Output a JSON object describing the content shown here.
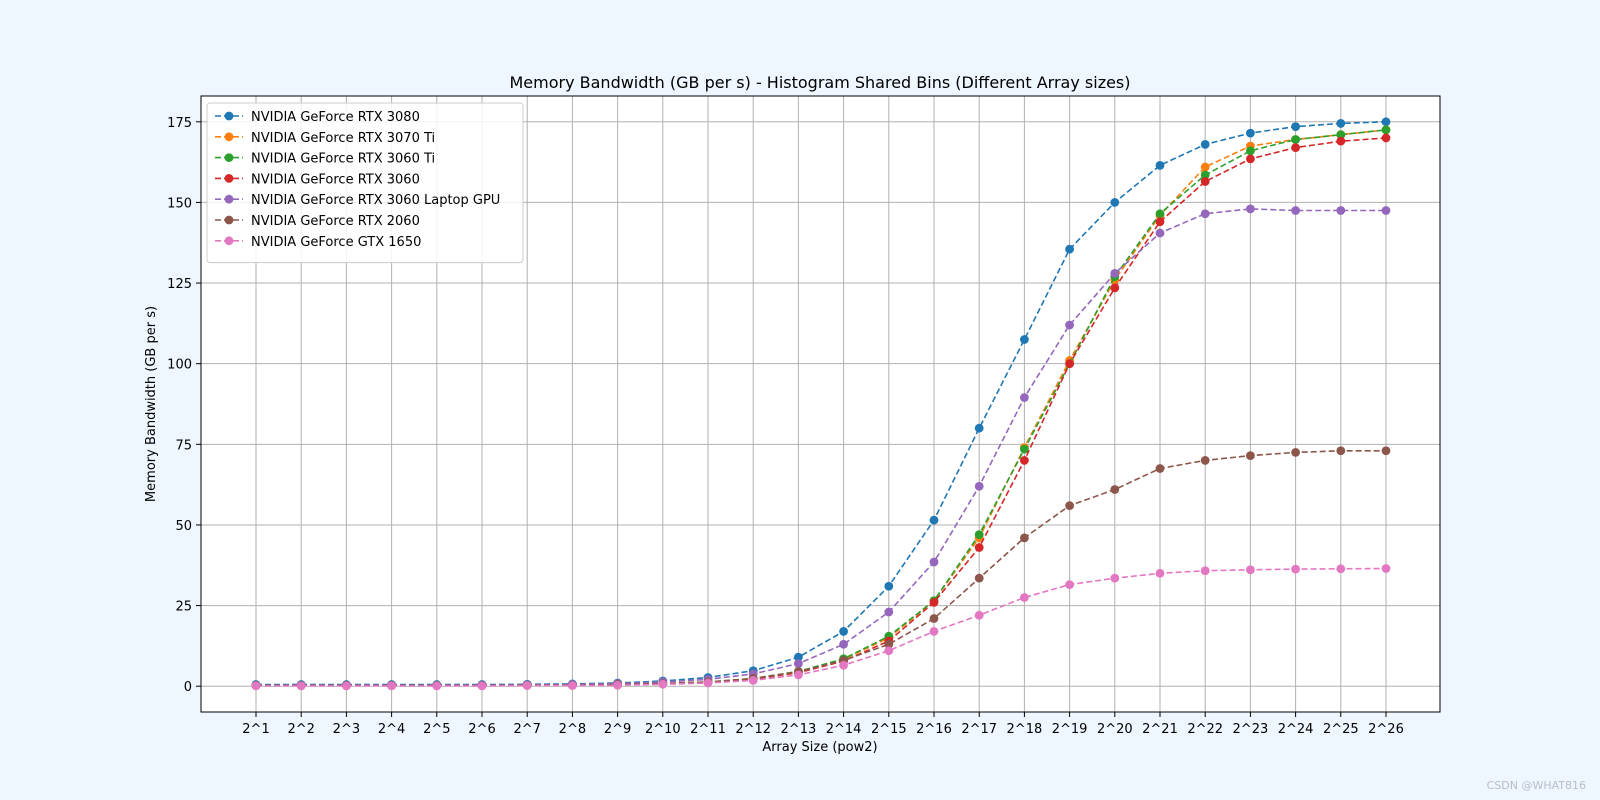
{
  "chart_data": {
    "type": "line",
    "title": "Memory Bandwidth (GB per s) - Histogram Shared Bins (Different Array sizes)",
    "xlabel": "Array Size (pow2)",
    "ylabel": "Memory Bandwidth (GB per s)",
    "ylim": [
      -8,
      183
    ],
    "yticks": [
      0,
      25,
      50,
      75,
      100,
      125,
      150,
      175
    ],
    "grid": true,
    "legend_position": "upper-left",
    "line_style": "dashed",
    "marker": "circle",
    "categories": [
      "2^1",
      "2^2",
      "2^3",
      "2^4",
      "2^5",
      "2^6",
      "2^7",
      "2^8",
      "2^9",
      "2^10",
      "2^11",
      "2^12",
      "2^13",
      "2^14",
      "2^15",
      "2^16",
      "2^17",
      "2^18",
      "2^19",
      "2^20",
      "2^21",
      "2^22",
      "2^23",
      "2^24",
      "2^25",
      "2^26"
    ],
    "series": [
      {
        "name": "NVIDIA GeForce RTX 3080",
        "color": "#1f77b4",
        "values": [
          0.5,
          0.5,
          0.5,
          0.5,
          0.5,
          0.5,
          0.6,
          0.7,
          1.0,
          1.6,
          2.7,
          4.8,
          9.0,
          17.0,
          31.0,
          51.5,
          80.0,
          107.5,
          135.5,
          150.0,
          161.5,
          168.0,
          171.5,
          173.5,
          174.5,
          175.0
        ]
      },
      {
        "name": "NVIDIA GeForce RTX 3070 Ti",
        "color": "#ff7f0e",
        "values": [
          0.2,
          0.2,
          0.2,
          0.2,
          0.2,
          0.2,
          0.3,
          0.3,
          0.5,
          0.8,
          1.3,
          2.4,
          4.5,
          8.3,
          15.0,
          26.5,
          46.0,
          74.0,
          101.0,
          126.0,
          146.0,
          161.0,
          167.5,
          169.5,
          171.0,
          172.5
        ]
      },
      {
        "name": "NVIDIA GeForce RTX 3060 Ti",
        "color": "#2ca02c",
        "values": [
          0.2,
          0.2,
          0.2,
          0.2,
          0.2,
          0.2,
          0.3,
          0.3,
          0.5,
          0.8,
          1.3,
          2.4,
          4.6,
          8.5,
          15.5,
          26.5,
          47.0,
          73.5,
          100.0,
          127.0,
          146.5,
          158.5,
          166.0,
          169.5,
          171.0,
          172.5
        ]
      },
      {
        "name": "NVIDIA GeForce RTX 3060",
        "color": "#d62728",
        "values": [
          0.2,
          0.2,
          0.2,
          0.2,
          0.2,
          0.2,
          0.3,
          0.3,
          0.5,
          0.8,
          1.2,
          2.2,
          4.2,
          7.8,
          14.0,
          26.0,
          43.0,
          70.0,
          100.0,
          123.5,
          144.0,
          156.5,
          163.5,
          167.0,
          169.0,
          170.0
        ]
      },
      {
        "name": "NVIDIA GeForce RTX 3060 Laptop GPU",
        "color": "#9467bd",
        "values": [
          0.3,
          0.3,
          0.3,
          0.3,
          0.3,
          0.3,
          0.4,
          0.5,
          0.8,
          1.3,
          2.1,
          3.8,
          7.0,
          13.0,
          23.0,
          38.5,
          62.0,
          89.5,
          112.0,
          128.0,
          140.5,
          146.5,
          148.0,
          147.5,
          147.5,
          147.5
        ]
      },
      {
        "name": "NVIDIA GeForce RTX 2060",
        "color": "#8c564b",
        "values": [
          0.2,
          0.2,
          0.2,
          0.2,
          0.2,
          0.2,
          0.3,
          0.3,
          0.5,
          0.8,
          1.3,
          2.4,
          4.5,
          8.0,
          13.0,
          21.0,
          33.5,
          46.0,
          56.0,
          61.0,
          67.5,
          70.0,
          71.5,
          72.5,
          73.0,
          73.0
        ]
      },
      {
        "name": "NVIDIA GeForce GTX 1650",
        "color": "#e377c2",
        "values": [
          0.1,
          0.1,
          0.1,
          0.1,
          0.1,
          0.1,
          0.2,
          0.2,
          0.3,
          0.6,
          1.0,
          1.8,
          3.5,
          6.5,
          11.0,
          17.0,
          22.0,
          27.5,
          31.5,
          33.5,
          35.0,
          35.8,
          36.1,
          36.3,
          36.4,
          36.5
        ]
      }
    ]
  },
  "watermark": "CSDN @WHAT816"
}
